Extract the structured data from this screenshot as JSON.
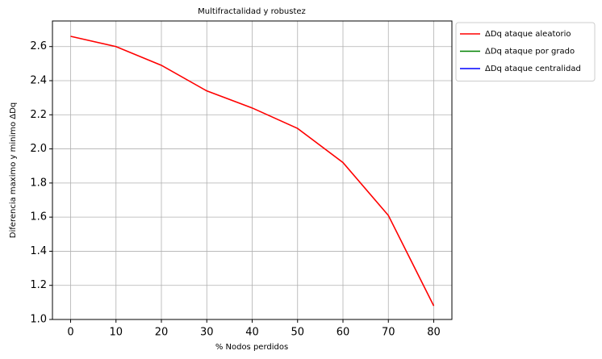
{
  "chart_data": {
    "type": "line",
    "title": "Multifractalidad y robustez",
    "x_label": "% Nodos perdidos",
    "y_label": "Diferencia maximo y minimo ΔDq",
    "x": [
      0,
      10,
      20,
      30,
      40,
      50,
      60,
      70,
      80
    ],
    "series": [
      {
        "name": "ΔDq ataque aleatorio",
        "color": "#ff0000",
        "values": [
          2.66,
          2.6,
          2.49,
          2.34,
          2.24,
          2.12,
          1.92,
          1.61,
          1.08
        ]
      },
      {
        "name": "ΔDq ataque por grado",
        "color": "#008000",
        "values": [
          null,
          null,
          null,
          null,
          null,
          null,
          null,
          null,
          null
        ]
      },
      {
        "name": "ΔDq ataque centralidad",
        "color": "#0000ff",
        "values": [
          null,
          null,
          null,
          null,
          null,
          null,
          null,
          null,
          null
        ]
      }
    ],
    "xlim": [
      -4,
      84
    ],
    "xticks": [
      0,
      10,
      20,
      30,
      40,
      50,
      60,
      70,
      80
    ],
    "ylim": [
      1.0,
      2.75
    ],
    "yticks": [
      {
        "value": 1.0,
        "label": "1.0"
      },
      {
        "value": 1.2,
        "label": "1.2"
      },
      {
        "value": 1.4,
        "label": "1.4"
      },
      {
        "value": 1.6,
        "label": "1.6"
      },
      {
        "value": 1.8,
        "label": "1.8"
      },
      {
        "value": 2.0,
        "label": "2.0"
      },
      {
        "value": 2.2,
        "label": "2.2"
      },
      {
        "value": 2.4,
        "label": "2.4"
      },
      {
        "value": 2.6,
        "label": "2.6"
      }
    ],
    "grid": true,
    "legend": "outside upper right"
  }
}
